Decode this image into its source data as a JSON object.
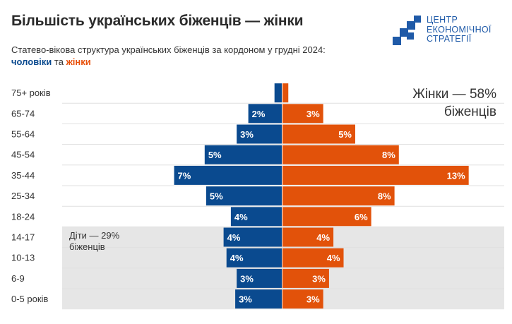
{
  "header": {
    "title": "Більшість українських біженців — жінки",
    "subtitle": "Статево-вікова структура українських біженців за кордоном у грудні 2024:",
    "legend_men": "чоловіки",
    "legend_and": " та ",
    "legend_women": "жінки"
  },
  "logo": {
    "line1": "ЦЕНТР",
    "line2": "ЕКОНОМІЧНОЇ",
    "line3": "СТРАТЕГІЇ"
  },
  "annotations": {
    "women_share_line1": "Жінки — 58%",
    "women_share_line2": "біженців",
    "children_share_line1": "Діти — 29%",
    "children_share_line2": "біженців"
  },
  "colors": {
    "men": "#0a4a8f",
    "women": "#e2520a",
    "children_band": "#e6e6e6",
    "grid": "#e0e0e0"
  },
  "chart_data": {
    "type": "bar",
    "subtype": "population-pyramid",
    "title": "Більшість українських біженців — жінки",
    "categories": [
      "75+ років",
      "65-74",
      "55-64",
      "45-54",
      "35-44",
      "25-34",
      "18-24",
      "14-17",
      "10-13",
      "6-9",
      "0-5 років"
    ],
    "series": [
      {
        "name": "чоловіки",
        "values": [
          0.5,
          2.3,
          3.1,
          5.3,
          7.4,
          5.2,
          3.5,
          4.0,
          3.8,
          3.1,
          3.2
        ],
        "labels": [
          "",
          "2%",
          "3%",
          "5%",
          "7%",
          "5%",
          "4%",
          "4%",
          "4%",
          "3%",
          "3%"
        ]
      },
      {
        "name": "жінки",
        "values": [
          0.4,
          2.8,
          5.0,
          8.0,
          12.8,
          7.7,
          6.1,
          3.5,
          4.2,
          3.2,
          2.8
        ],
        "labels": [
          "",
          "3%",
          "5%",
          "8%",
          "13%",
          "8%",
          "6%",
          "4%",
          "4%",
          "3%",
          "3%"
        ]
      }
    ],
    "children_categories": [
      "14-17",
      "10-13",
      "6-9",
      "0-5 років"
    ],
    "xlabel": "",
    "ylabel": ""
  }
}
